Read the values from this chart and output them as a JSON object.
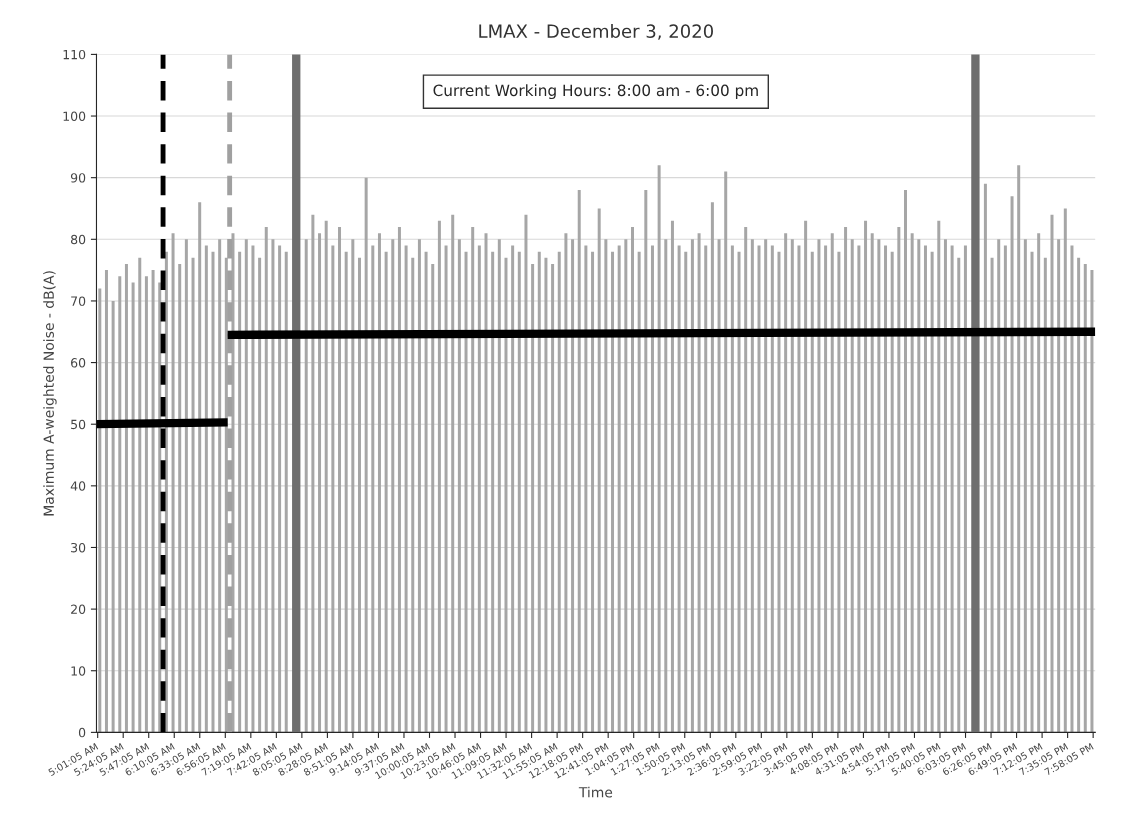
{
  "chart_data": {
    "type": "bar",
    "title": "LMAX - December 3, 2020",
    "xlabel": "Time",
    "ylabel": "Maximum A-weighted Noise - dB(A)",
    "annotations": [
      "Current Working Hours: 8:00 am - 6:00 pm"
    ],
    "x": [
      5.05,
      5.15,
      5.25,
      5.35,
      5.45,
      5.55,
      5.65,
      5.75,
      5.85,
      5.95,
      6.05,
      6.15,
      6.25,
      6.35,
      6.45,
      6.55,
      6.65,
      6.75,
      6.85,
      6.95,
      7.05,
      7.15,
      7.25,
      7.35,
      7.45,
      7.55,
      7.65,
      7.75,
      7.85,
      7.95,
      8.05,
      8.15,
      8.25,
      8.35,
      8.45,
      8.55,
      8.65,
      8.75,
      8.85,
      8.95,
      9.05,
      9.15,
      9.25,
      9.35,
      9.45,
      9.55,
      9.65,
      9.75,
      9.85,
      9.95,
      10.05,
      10.15,
      10.25,
      10.35,
      10.45,
      10.55,
      10.65,
      10.75,
      10.85,
      10.95,
      11.05,
      11.15,
      11.25,
      11.35,
      11.45,
      11.55,
      11.65,
      11.75,
      11.85,
      11.95,
      12.05,
      12.15,
      12.25,
      12.35,
      12.45,
      12.55,
      12.65,
      12.75,
      12.85,
      12.95,
      13.05,
      13.15,
      13.25,
      13.35,
      13.45,
      13.55,
      13.65,
      13.75,
      13.85,
      13.95,
      14.05,
      14.15,
      14.25,
      14.35,
      14.45,
      14.55,
      14.65,
      14.75,
      14.85,
      14.95,
      15.05,
      15.15,
      15.25,
      15.35,
      15.45,
      15.55,
      15.65,
      15.75,
      15.85,
      15.95,
      16.05,
      16.15,
      16.25,
      16.35,
      16.45,
      16.55,
      16.65,
      16.75,
      16.85,
      16.95,
      17.05,
      17.15,
      17.25,
      17.35,
      17.45,
      17.55,
      17.65,
      17.75,
      17.85,
      17.95,
      18.05,
      18.15,
      18.25,
      18.35,
      18.45,
      18.55,
      18.65,
      18.75,
      18.85,
      18.95,
      19.05,
      19.15,
      19.25,
      19.35,
      19.45,
      19.55,
      19.65,
      19.75,
      19.85,
      19.95
    ],
    "series": [
      {
        "color": "#a6a6a6",
        "values": [
          72,
          75,
          70,
          74,
          76,
          73,
          77,
          74,
          75,
          73,
          78,
          81,
          76,
          80,
          77,
          86,
          79,
          78,
          80,
          77,
          81,
          78,
          80,
          79,
          77,
          82,
          80,
          79,
          78,
          null,
          null,
          80,
          84,
          81,
          83,
          79,
          82,
          78,
          80,
          77,
          90,
          79,
          81,
          78,
          80,
          82,
          79,
          77,
          80,
          78,
          76,
          83,
          79,
          84,
          80,
          78,
          82,
          79,
          81,
          78,
          80,
          77,
          79,
          78,
          84,
          76,
          78,
          77,
          76,
          78,
          81,
          80,
          88,
          79,
          78,
          85,
          80,
          78,
          79,
          80,
          82,
          78,
          88,
          79,
          92,
          80,
          83,
          79,
          78,
          80,
          81,
          79,
          86,
          80,
          91,
          79,
          78,
          82,
          80,
          79,
          80,
          79,
          78,
          81,
          80,
          79,
          83,
          78,
          80,
          79,
          81,
          78,
          82,
          80,
          79,
          83,
          81,
          80,
          79,
          78,
          82,
          88,
          81,
          80,
          79,
          78,
          83,
          80,
          79,
          77,
          79,
          null,
          null,
          89,
          77,
          80,
          79,
          87,
          92,
          80,
          78,
          81,
          77,
          84,
          80,
          85,
          79,
          77,
          76,
          75
        ]
      },
      {
        "type": "line",
        "color": "#000000",
        "x": [
          5.0,
          6.97
        ],
        "values": [
          50,
          50.3
        ]
      },
      {
        "type": "line",
        "color": "#000000",
        "x": [
          6.97,
          20.0
        ],
        "values": [
          64.5,
          65
        ]
      }
    ],
    "ref_lines": [
      {
        "axis": "x",
        "value": 6.0,
        "color": "#000000",
        "line_style": "dashed"
      },
      {
        "axis": "x",
        "value": 7.0,
        "color": "#a0a0a0",
        "line_style": "dashed"
      },
      {
        "axis": "x",
        "value": 8.0,
        "color": "#6e6e6e",
        "line_style": "solid"
      },
      {
        "axis": "x",
        "value": 18.2,
        "color": "#6e6e6e",
        "line_style": "solid"
      }
    ],
    "xlim": [
      5.0,
      20.0
    ],
    "ylim": [
      0,
      110
    ],
    "yticks": [
      0,
      10,
      20,
      30,
      40,
      50,
      60,
      70,
      80,
      90,
      100,
      110
    ],
    "xticks": [
      {
        "value": 5.0181,
        "label": "5:01:05 AM"
      },
      {
        "value": 5.4014,
        "label": "5:24:05 AM"
      },
      {
        "value": 5.7847,
        "label": "5:47:05 AM"
      },
      {
        "value": 6.1681,
        "label": "6:10:05 AM"
      },
      {
        "value": 6.5514,
        "label": "6:33:05 AM"
      },
      {
        "value": 6.9347,
        "label": "6:56:05 AM"
      },
      {
        "value": 7.3181,
        "label": "7:19:05 AM"
      },
      {
        "value": 7.7014,
        "label": "7:42:05 AM"
      },
      {
        "value": 8.0847,
        "label": "8:05:05 AM"
      },
      {
        "value": 8.4681,
        "label": "8:28:05 AM"
      },
      {
        "value": 8.8514,
        "label": "8:51:05 AM"
      },
      {
        "value": 9.2347,
        "label": "9:14:05 AM"
      },
      {
        "value": 9.6181,
        "label": "9:37:05 AM"
      },
      {
        "value": 10.0014,
        "label": "10:00:05 AM"
      },
      {
        "value": 10.3847,
        "label": "10:23:05 AM"
      },
      {
        "value": 10.7681,
        "label": "10:46:05 AM"
      },
      {
        "value": 11.1514,
        "label": "11:09:05 AM"
      },
      {
        "value": 11.5347,
        "label": "11:32:05 AM"
      },
      {
        "value": 11.9181,
        "label": "11:55:05 AM"
      },
      {
        "value": 12.3014,
        "label": "12:18:05 PM"
      },
      {
        "value": 12.6847,
        "label": "12:41:05 PM"
      },
      {
        "value": 13.0681,
        "label": "1:04:05 PM"
      },
      {
        "value": 13.4514,
        "label": "1:27:05 PM"
      },
      {
        "value": 13.8347,
        "label": "1:50:05 PM"
      },
      {
        "value": 14.2181,
        "label": "2:13:05 PM"
      },
      {
        "value": 14.6014,
        "label": "2:36:05 PM"
      },
      {
        "value": 14.9847,
        "label": "2:59:05 PM"
      },
      {
        "value": 15.3681,
        "label": "3:22:05 PM"
      },
      {
        "value": 15.7514,
        "label": "3:45:05 PM"
      },
      {
        "value": 16.1347,
        "label": "4:08:05 PM"
      },
      {
        "value": 16.5181,
        "label": "4:31:05 PM"
      },
      {
        "value": 16.9014,
        "label": "4:54:05 PM"
      },
      {
        "value": 17.2847,
        "label": "5:17:05 PM"
      },
      {
        "value": 17.6681,
        "label": "5:40:05 PM"
      },
      {
        "value": 18.0514,
        "label": "6:03:05 PM"
      },
      {
        "value": 18.4347,
        "label": "6:26:05 PM"
      },
      {
        "value": 18.8181,
        "label": "6:49:05 PM"
      },
      {
        "value": 19.2014,
        "label": "7:12:05 PM"
      },
      {
        "value": 19.5847,
        "label": "7:35:05 PM"
      },
      {
        "value": 19.9681,
        "label": "7:58:05 PM"
      }
    ],
    "grid": "y",
    "legend": false
  }
}
